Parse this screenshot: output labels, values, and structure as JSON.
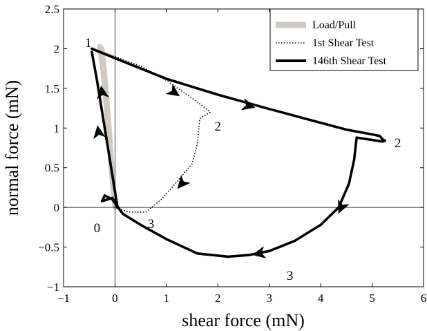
{
  "chart_data": {
    "type": "line",
    "title": "",
    "xlabel": "shear force (mN)",
    "ylabel": "normal force (mN)",
    "xlim": [
      -1,
      6
    ],
    "ylim": [
      -1,
      2.5
    ],
    "xticks": [
      -1,
      0,
      1,
      2,
      3,
      4,
      5,
      6
    ],
    "xtick_labels": [
      "−1",
      "0",
      "1",
      "2",
      "3",
      "4",
      "5",
      "6"
    ],
    "yticks": [
      -1,
      -0.5,
      0,
      0.5,
      1,
      1.5,
      2,
      2.5
    ],
    "ytick_labels": [
      "−1",
      "−0.5",
      "0",
      "0.5",
      "1",
      "1.5",
      "2",
      "2.5"
    ],
    "grid": false,
    "legend_position": "top-right",
    "zero_lines": true,
    "series": [
      {
        "name": "Load/Pull",
        "color": "#cfcbc4",
        "style": "thick-gray",
        "x": [
          0.0,
          -0.05,
          -0.1,
          -0.15,
          -0.2,
          -0.25,
          -0.3,
          -0.3,
          -0.25,
          -0.2,
          -0.15,
          -0.1,
          -0.05,
          0.0
        ],
        "y": [
          0.0,
          0.3,
          0.7,
          1.1,
          1.5,
          1.8,
          2.0,
          2.03,
          2.0,
          1.7,
          1.3,
          0.9,
          0.4,
          0.05
        ]
      },
      {
        "name": "1st Shear Test",
        "color": "#000000",
        "style": "dotted",
        "x": [
          -0.35,
          0.0,
          0.5,
          1.0,
          1.4,
          1.7,
          1.85,
          1.65,
          1.6,
          1.5,
          1.2,
          0.9,
          0.6,
          0.3,
          0.05,
          0.0
        ],
        "y": [
          1.98,
          1.9,
          1.78,
          1.6,
          1.42,
          1.28,
          1.2,
          1.12,
          0.8,
          0.55,
          0.32,
          0.1,
          -0.06,
          -0.06,
          -0.02,
          0.02
        ],
        "arrows_at": [
          [
            1.15,
            1.45
          ],
          [
            1.3,
            0.3
          ]
        ]
      },
      {
        "name": "146th Shear Test",
        "color": "#000000",
        "style": "thick-black",
        "x": [
          -0.45,
          0.0,
          1.0,
          2.0,
          3.0,
          3.8,
          4.5,
          5.0,
          5.15,
          5.2,
          5.25,
          5.2,
          4.7,
          4.65,
          4.55,
          4.35,
          4.0,
          3.5,
          3.0,
          2.6,
          2.2,
          1.6,
          1.0,
          0.5,
          0.15,
          -0.05,
          -0.2,
          -0.25,
          -0.05,
          0.05,
          -0.05,
          -0.15,
          -0.25,
          -0.35,
          -0.45
        ],
        "y": [
          2.0,
          1.88,
          1.62,
          1.42,
          1.24,
          1.1,
          0.98,
          0.92,
          0.9,
          0.86,
          0.84,
          0.83,
          0.88,
          0.6,
          0.3,
          0.0,
          -0.22,
          -0.42,
          -0.55,
          -0.6,
          -0.62,
          -0.58,
          -0.4,
          -0.22,
          -0.08,
          0.1,
          0.15,
          0.08,
          0.12,
          0.0,
          0.4,
          0.8,
          1.2,
          1.6,
          1.96
        ],
        "arrows_at": [
          [
            2.6,
            1.28
          ],
          [
            4.4,
            0.0
          ],
          [
            2.8,
            -0.58
          ],
          [
            -0.25,
            1.45
          ],
          [
            -0.32,
            0.95
          ]
        ]
      }
    ],
    "annotations": [
      {
        "text": "1",
        "x": -0.52,
        "y": 2.08
      },
      {
        "text": "2",
        "x": 2.0,
        "y": 1.03
      },
      {
        "text": "2",
        "x": 5.5,
        "y": 0.82
      },
      {
        "text": "3",
        "x": 0.7,
        "y": -0.2
      },
      {
        "text": "3",
        "x": 3.4,
        "y": -0.85
      },
      {
        "text": "0",
        "x": -0.35,
        "y": -0.25
      }
    ]
  }
}
